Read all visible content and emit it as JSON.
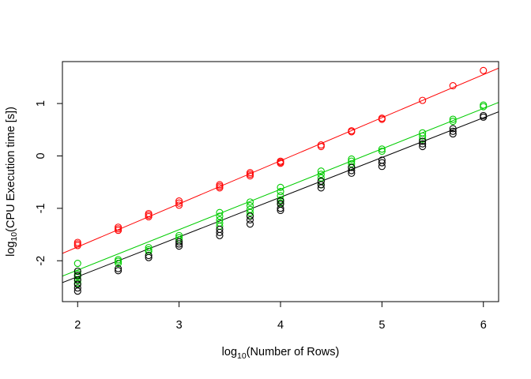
{
  "chart_data": {
    "type": "scatter",
    "title": "",
    "xlabel": {
      "base": "log",
      "sub": "10",
      "rest": "(Number of Rows)"
    },
    "ylabel": {
      "base": "log",
      "sub": "10",
      "rest": "(CPU Execution time [s])"
    },
    "xlim": [
      1.85,
      6.15
    ],
    "ylim": [
      -2.78,
      1.8
    ],
    "xticks": [
      2,
      3,
      4,
      5,
      6
    ],
    "yticks": [
      -2,
      -1,
      0,
      1
    ],
    "grid": false,
    "legend": "none",
    "series": [
      {
        "color": "#ff0000",
        "fit": {
          "intercept": -3.38,
          "slope": 0.822
        },
        "points": [
          [
            2,
            -1.65
          ],
          [
            2,
            -1.68
          ],
          [
            2,
            -1.71
          ],
          [
            2.4,
            -1.36
          ],
          [
            2.4,
            -1.39
          ],
          [
            2.4,
            -1.42
          ],
          [
            2.7,
            -1.1
          ],
          [
            2.7,
            -1.13
          ],
          [
            2.7,
            -1.16
          ],
          [
            3,
            -0.86
          ],
          [
            3,
            -0.9
          ],
          [
            3,
            -0.94
          ],
          [
            3.4,
            -0.55
          ],
          [
            3.4,
            -0.58
          ],
          [
            3.4,
            -0.61
          ],
          [
            3.7,
            -0.32
          ],
          [
            3.7,
            -0.35
          ],
          [
            3.7,
            -0.38
          ],
          [
            4,
            -0.1
          ],
          [
            4,
            -0.12
          ],
          [
            4,
            -0.14
          ],
          [
            4.4,
            0.21
          ],
          [
            4.4,
            0.18
          ],
          [
            4.7,
            0.48
          ],
          [
            4.7,
            0.46
          ],
          [
            5,
            0.72
          ],
          [
            5,
            0.7
          ],
          [
            5.4,
            1.06
          ],
          [
            5.7,
            1.34
          ],
          [
            6,
            1.63
          ]
        ]
      },
      {
        "color": "#00cc00",
        "fit": {
          "intercept": -3.72,
          "slope": 0.771
        },
        "points": [
          [
            2,
            -2.05
          ],
          [
            2,
            -2.2
          ],
          [
            2,
            -2.25
          ],
          [
            2,
            -2.3
          ],
          [
            2,
            -2.38
          ],
          [
            2,
            -2.43
          ],
          [
            2.4,
            -1.98
          ],
          [
            2.4,
            -2.01
          ],
          [
            2.4,
            -2.05
          ],
          [
            2.7,
            -1.75
          ],
          [
            2.7,
            -1.79
          ],
          [
            2.7,
            -1.82
          ],
          [
            3,
            -1.52
          ],
          [
            3,
            -1.56
          ],
          [
            3,
            -1.6
          ],
          [
            3.4,
            -1.08
          ],
          [
            3.4,
            -1.15
          ],
          [
            3.4,
            -1.22
          ],
          [
            3.4,
            -1.28
          ],
          [
            3.4,
            -1.34
          ],
          [
            3.7,
            -0.88
          ],
          [
            3.7,
            -0.95
          ],
          [
            3.7,
            -1.02
          ],
          [
            3.7,
            -1.08
          ],
          [
            3.7,
            -1.14
          ],
          [
            4,
            -0.6
          ],
          [
            4,
            -0.68
          ],
          [
            4,
            -0.76
          ],
          [
            4,
            -0.84
          ],
          [
            4,
            -0.9
          ],
          [
            4.4,
            -0.29
          ],
          [
            4.4,
            -0.35
          ],
          [
            4.4,
            -0.42
          ],
          [
            4.4,
            -0.49
          ],
          [
            4.4,
            -0.55
          ],
          [
            4.7,
            -0.06
          ],
          [
            4.7,
            -0.1
          ],
          [
            4.7,
            -0.15
          ],
          [
            4.7,
            -0.21
          ],
          [
            5,
            0.13
          ],
          [
            5,
            0.09
          ],
          [
            5.4,
            0.44
          ],
          [
            5.4,
            0.38
          ],
          [
            5.4,
            0.32
          ],
          [
            5.7,
            0.7
          ],
          [
            5.7,
            0.66
          ],
          [
            6,
            0.97
          ],
          [
            6,
            0.94
          ]
        ]
      },
      {
        "color": "#000000",
        "fit": {
          "intercept": -3.82,
          "slope": 0.758
        },
        "points": [
          [
            2,
            -2.2
          ],
          [
            2,
            -2.28
          ],
          [
            2,
            -2.36
          ],
          [
            2,
            -2.45
          ],
          [
            2,
            -2.52
          ],
          [
            2,
            -2.58
          ],
          [
            2.4,
            -2.15
          ],
          [
            2.4,
            -2.19
          ],
          [
            2.7,
            -1.9
          ],
          [
            2.7,
            -1.94
          ],
          [
            3,
            -1.64
          ],
          [
            3,
            -1.68
          ],
          [
            3,
            -1.72
          ],
          [
            3.4,
            -1.4
          ],
          [
            3.4,
            -1.46
          ],
          [
            3.4,
            -1.52
          ],
          [
            3.7,
            -1.15
          ],
          [
            3.7,
            -1.22
          ],
          [
            3.7,
            -1.3
          ],
          [
            4,
            -0.86
          ],
          [
            4,
            -0.92
          ],
          [
            4,
            -1.0
          ],
          [
            4,
            -1.04
          ],
          [
            4.4,
            -0.48
          ],
          [
            4.4,
            -0.55
          ],
          [
            4.4,
            -0.61
          ],
          [
            4.7,
            -0.22
          ],
          [
            4.7,
            -0.28
          ],
          [
            4.7,
            -0.33
          ],
          [
            5,
            -0.08
          ],
          [
            5,
            -0.13
          ],
          [
            5,
            -0.2
          ],
          [
            5.4,
            0.28
          ],
          [
            5.4,
            0.23
          ],
          [
            5.4,
            0.18
          ],
          [
            5.7,
            0.52
          ],
          [
            5.7,
            0.47
          ],
          [
            5.7,
            0.42
          ],
          [
            6,
            0.77
          ],
          [
            6,
            0.74
          ]
        ]
      }
    ]
  }
}
